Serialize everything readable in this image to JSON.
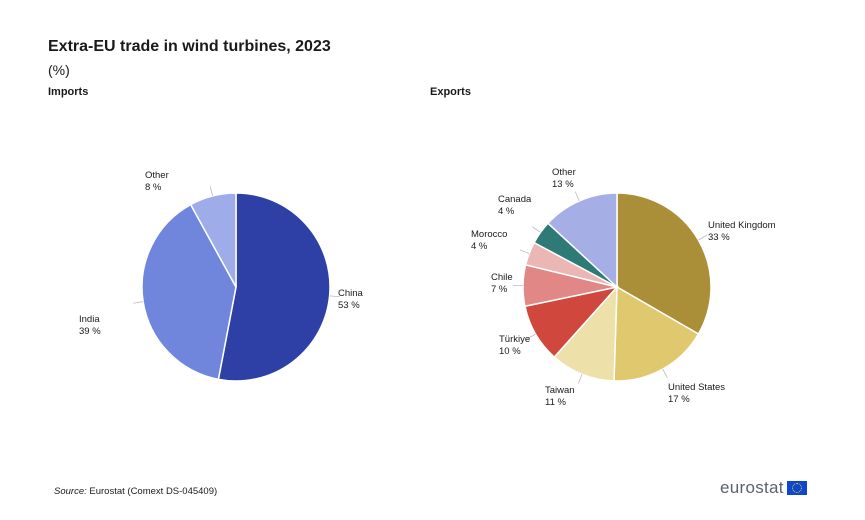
{
  "header": {
    "title": "Extra-EU trade in wind turbines, 2023",
    "subtitle": "(%)"
  },
  "footer": {
    "source_label": "Source:",
    "source_text": "Eurostat (Comext DS-045409)",
    "logo_text": "eurostat"
  },
  "chart_data": [
    {
      "type": "pie",
      "title": "Imports",
      "slices": [
        {
          "label": "China",
          "value_label": "53 %",
          "value": 53,
          "color": "#2e40a5"
        },
        {
          "label": "India",
          "value_label": "39 %",
          "value": 39,
          "color": "#6f86dc"
        },
        {
          "label": "Other",
          "value_label": "8 %",
          "value": 8,
          "color": "#9eadea"
        }
      ]
    },
    {
      "type": "pie",
      "title": "Exports",
      "slices": [
        {
          "label": "United Kingdom",
          "value_label": "33 %",
          "value": 33,
          "color": "#ab8f38"
        },
        {
          "label": "United States",
          "value_label": "17 %",
          "value": 17,
          "color": "#dfc86d"
        },
        {
          "label": "Taiwan",
          "value_label": "11 %",
          "value": 11,
          "color": "#ede0a8"
        },
        {
          "label": "Türkiye",
          "value_label": "10 %",
          "value": 10,
          "color": "#d0473d"
        },
        {
          "label": "Chile",
          "value_label": "7 %",
          "value": 7,
          "color": "#e18785"
        },
        {
          "label": "Morocco",
          "value_label": "4 %",
          "value": 4,
          "color": "#ebb7b5"
        },
        {
          "label": "Canada",
          "value_label": "4 %",
          "value": 4,
          "color": "#2e7a76"
        },
        {
          "label": "Other",
          "value_label": "13 %",
          "value": 13,
          "color": "#a5aee5"
        }
      ]
    }
  ]
}
